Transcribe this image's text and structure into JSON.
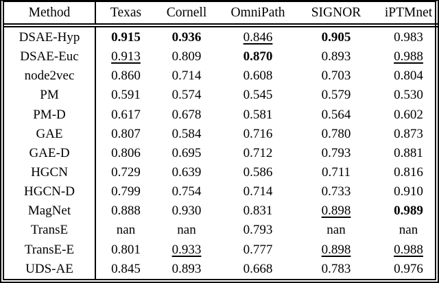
{
  "colors": {
    "background": "#ffffff",
    "text": "#000000",
    "border": "#000000"
  },
  "table": {
    "columns": [
      "Method",
      "Texas",
      "Cornell",
      "OmniPath",
      "SIGNOR",
      "iPTMnet"
    ],
    "rows": [
      {
        "method": "DSAE-Hyp",
        "values": [
          {
            "v": "0.915",
            "s": "b"
          },
          {
            "v": "0.936",
            "s": "b"
          },
          {
            "v": "0.846",
            "s": "u"
          },
          {
            "v": "0.905",
            "s": "b"
          },
          {
            "v": "0.983",
            "s": ""
          }
        ]
      },
      {
        "method": "DSAE-Euc",
        "values": [
          {
            "v": "0.913",
            "s": "u"
          },
          {
            "v": "0.809",
            "s": ""
          },
          {
            "v": "0.870",
            "s": "b"
          },
          {
            "v": "0.893",
            "s": ""
          },
          {
            "v": "0.988",
            "s": "u"
          }
        ]
      },
      {
        "method": "node2vec",
        "values": [
          {
            "v": "0.860",
            "s": ""
          },
          {
            "v": "0.714",
            "s": ""
          },
          {
            "v": "0.608",
            "s": ""
          },
          {
            "v": "0.703",
            "s": ""
          },
          {
            "v": "0.804",
            "s": ""
          }
        ]
      },
      {
        "method": "PM",
        "values": [
          {
            "v": "0.591",
            "s": ""
          },
          {
            "v": "0.574",
            "s": ""
          },
          {
            "v": "0.545",
            "s": ""
          },
          {
            "v": "0.579",
            "s": ""
          },
          {
            "v": "0.530",
            "s": ""
          }
        ]
      },
      {
        "method": "PM-D",
        "values": [
          {
            "v": "0.617",
            "s": ""
          },
          {
            "v": "0.678",
            "s": ""
          },
          {
            "v": "0.581",
            "s": ""
          },
          {
            "v": "0.564",
            "s": ""
          },
          {
            "v": "0.602",
            "s": ""
          }
        ]
      },
      {
        "method": "GAE",
        "values": [
          {
            "v": "0.807",
            "s": ""
          },
          {
            "v": "0.584",
            "s": ""
          },
          {
            "v": "0.716",
            "s": ""
          },
          {
            "v": "0.780",
            "s": ""
          },
          {
            "v": "0.873",
            "s": ""
          }
        ]
      },
      {
        "method": "GAE-D",
        "values": [
          {
            "v": "0.806",
            "s": ""
          },
          {
            "v": "0.695",
            "s": ""
          },
          {
            "v": "0.712",
            "s": ""
          },
          {
            "v": "0.793",
            "s": ""
          },
          {
            "v": "0.881",
            "s": ""
          }
        ]
      },
      {
        "method": "HGCN",
        "values": [
          {
            "v": "0.729",
            "s": ""
          },
          {
            "v": "0.639",
            "s": ""
          },
          {
            "v": "0.586",
            "s": ""
          },
          {
            "v": "0.711",
            "s": ""
          },
          {
            "v": "0.816",
            "s": ""
          }
        ]
      },
      {
        "method": "HGCN-D",
        "values": [
          {
            "v": "0.799",
            "s": ""
          },
          {
            "v": "0.754",
            "s": ""
          },
          {
            "v": "0.714",
            "s": ""
          },
          {
            "v": "0.733",
            "s": ""
          },
          {
            "v": "0.910",
            "s": ""
          }
        ]
      },
      {
        "method": "MagNet",
        "values": [
          {
            "v": "0.888",
            "s": ""
          },
          {
            "v": "0.930",
            "s": ""
          },
          {
            "v": "0.831",
            "s": ""
          },
          {
            "v": "0.898",
            "s": "u"
          },
          {
            "v": "0.989",
            "s": "b"
          }
        ]
      },
      {
        "method": "TransE",
        "values": [
          {
            "v": "nan",
            "s": ""
          },
          {
            "v": "nan",
            "s": ""
          },
          {
            "v": "0.793",
            "s": ""
          },
          {
            "v": "nan",
            "s": ""
          },
          {
            "v": "nan",
            "s": ""
          }
        ]
      },
      {
        "method": "TransE-E",
        "values": [
          {
            "v": "0.801",
            "s": ""
          },
          {
            "v": "0.933",
            "s": "u"
          },
          {
            "v": "0.777",
            "s": ""
          },
          {
            "v": "0.898",
            "s": "u"
          },
          {
            "v": "0.988",
            "s": "u"
          }
        ]
      },
      {
        "method": "UDS-AE",
        "values": [
          {
            "v": "0.845",
            "s": ""
          },
          {
            "v": "0.893",
            "s": ""
          },
          {
            "v": "0.668",
            "s": ""
          },
          {
            "v": "0.783",
            "s": ""
          },
          {
            "v": "0.976",
            "s": ""
          }
        ]
      }
    ]
  }
}
